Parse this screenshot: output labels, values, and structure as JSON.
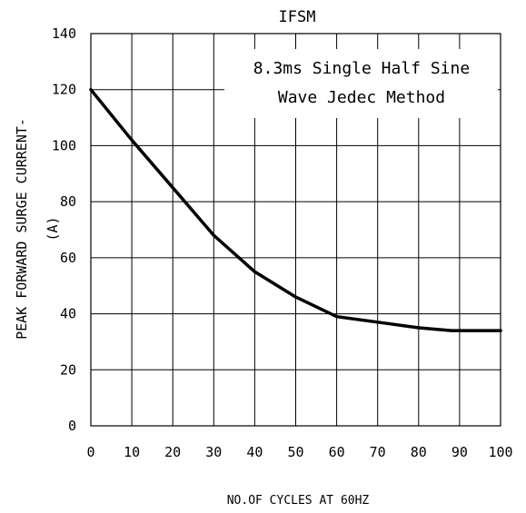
{
  "chart_data": {
    "type": "line",
    "title": "IFSM",
    "xlabel": "NO.OF CYCLES AT 60HZ",
    "ylabel": "PEAK FORWARD SURGE CURRENT-",
    "ylabel_unit": "(A)",
    "annotation": [
      "8.3ms Single Half Sine",
      "Wave Jedec Method"
    ],
    "xlim": [
      0,
      100
    ],
    "ylim": [
      0,
      140
    ],
    "xticks": [
      "0",
      "10",
      "20",
      "30",
      "40",
      "50",
      "60",
      "70",
      "80",
      "90",
      "100"
    ],
    "yticks": [
      "0",
      "20",
      "40",
      "60",
      "80",
      "100",
      "120",
      "140"
    ],
    "grid": true,
    "series": [
      {
        "x": [
          0,
          10,
          20,
          30,
          40,
          50,
          60,
          70,
          80,
          88,
          100
        ],
        "y": [
          120,
          102,
          85,
          68,
          55,
          46,
          39,
          37,
          35,
          34,
          34
        ]
      }
    ]
  }
}
